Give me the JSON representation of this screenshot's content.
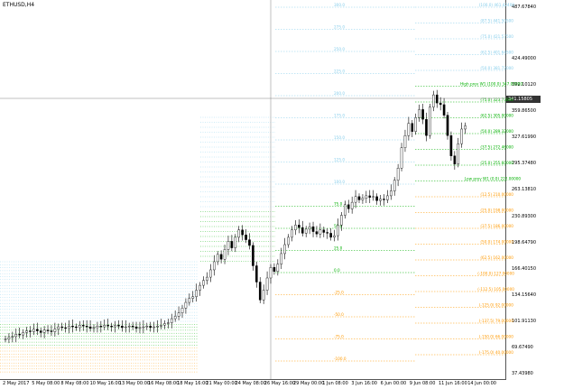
{
  "chart": {
    "symbol_title": "ETHUSD,H4",
    "current_price_label": "341.15805"
  },
  "price_axis": {
    "labels": [
      "487.67840",
      "424.49000",
      "392.10120",
      "359.86500",
      "327.61990",
      "295.37480",
      "263.13810",
      "230.89300",
      "198.64790",
      "166.40150",
      "134.15640",
      "101.91130",
      "69.67490",
      "37.43980"
    ]
  },
  "time_axis": {
    "labels": [
      "2 May 2017",
      "5 May 08:00",
      "8 May 08:00",
      "10 May 16:00",
      "13 May 00:00",
      "16 May 08:00",
      "18 May 16:00",
      "21 May 00:00",
      "24 May 08:00",
      "26 May 16:00",
      "29 May 00:00",
      "1 Jun 08:00",
      "3 Jun 16:00",
      "6 Jun 00:00",
      "9 Jun 08:00",
      "11 Jun 16:00",
      "14 Jun 00:00"
    ]
  },
  "annotations": {
    "right_levels": [
      "(100.0) 461.42400",
      "(87.5) 441.50500",
      "(75.0) 421.57500",
      "(62.5) 401.64500",
      "(50.0) 381.72000",
      "High prev W1 (100.0) 347.00000",
      "(75.0) 323.73000",
      "(62.5) 305.00000",
      "(50.0) 289.32000",
      "(37.5) 272.46000",
      "(25.0) 255.60000",
      "Low prev W1 (0.0) 222.00000",
      "(12.5) 210.00000",
      "(25.0) 198.00000",
      "(37.5) 186.00000",
      "(50.0) 174.00000",
      "(62.5) 162.00000",
      "(-100.0) 127.00000",
      "(-112.5) 105.00000",
      "(-125.0) 92.00000",
      "(-137.5) 79.00000",
      "(-150.0) 66.00000",
      "(-175.0) 40.00000"
    ],
    "mid_levels": [
      "300.0",
      "275.0",
      "250.0",
      "225.0",
      "200.0",
      "175.0",
      "150.0",
      "125.0",
      "100.0",
      "75.0",
      "50.0",
      "25.0",
      "0.0",
      "-25.0",
      "-50.0",
      "-75.0",
      "-100.0"
    ]
  },
  "colors": {
    "candle": "#000000",
    "line_blue": "#87ceeb",
    "line_green": "#00b000",
    "line_orange": "#ff9900",
    "crosshair": "#808080"
  },
  "price_series_usd": [
    [
      0,
      80
    ],
    [
      4,
      82
    ],
    [
      8,
      83
    ],
    [
      12,
      86
    ],
    [
      16,
      85
    ],
    [
      20,
      88
    ],
    [
      24,
      90
    ],
    [
      28,
      89
    ],
    [
      32,
      92
    ],
    [
      36,
      90
    ],
    [
      40,
      88
    ],
    [
      44,
      91
    ],
    [
      48,
      90
    ],
    [
      52,
      89
    ],
    [
      56,
      92
    ],
    [
      60,
      95
    ],
    [
      64,
      94
    ],
    [
      68,
      93
    ],
    [
      72,
      96
    ],
    [
      76,
      95
    ],
    [
      80,
      94
    ],
    [
      84,
      97
    ],
    [
      88,
      96
    ],
    [
      92,
      95
    ],
    [
      96,
      93
    ],
    [
      100,
      94
    ],
    [
      104,
      96
    ],
    [
      108,
      95
    ],
    [
      112,
      97
    ],
    [
      116,
      96
    ],
    [
      120,
      95
    ],
    [
      124,
      97
    ],
    [
      128,
      96
    ],
    [
      132,
      94
    ],
    [
      136,
      95
    ],
    [
      140,
      96
    ],
    [
      144,
      95
    ],
    [
      148,
      93
    ],
    [
      152,
      94
    ],
    [
      156,
      95
    ],
    [
      160,
      96
    ],
    [
      164,
      94
    ],
    [
      168,
      95
    ],
    [
      172,
      96
    ],
    [
      176,
      97
    ],
    [
      180,
      99
    ],
    [
      184,
      100
    ],
    [
      188,
      105
    ],
    [
      192,
      108
    ],
    [
      196,
      112
    ],
    [
      200,
      118
    ],
    [
      204,
      125
    ],
    [
      208,
      130
    ],
    [
      212,
      132
    ],
    [
      216,
      140
    ],
    [
      220,
      146
    ],
    [
      224,
      152
    ],
    [
      228,
      156
    ],
    [
      232,
      165
    ],
    [
      236,
      175
    ],
    [
      240,
      184
    ],
    [
      244,
      178
    ],
    [
      248,
      190
    ],
    [
      252,
      200
    ],
    [
      256,
      192
    ],
    [
      260,
      205
    ],
    [
      264,
      214
    ],
    [
      268,
      208
    ],
    [
      272,
      202
    ],
    [
      276,
      195
    ],
    [
      280,
      170
    ],
    [
      284,
      150
    ],
    [
      288,
      128
    ],
    [
      292,
      140
    ],
    [
      296,
      155
    ],
    [
      300,
      168
    ],
    [
      304,
      163
    ],
    [
      308,
      172
    ],
    [
      312,
      185
    ],
    [
      316,
      196
    ],
    [
      320,
      205
    ],
    [
      324,
      214
    ],
    [
      328,
      220
    ],
    [
      332,
      217
    ],
    [
      336,
      210
    ],
    [
      340,
      215
    ],
    [
      344,
      218
    ],
    [
      348,
      212
    ],
    [
      352,
      209
    ],
    [
      356,
      214
    ],
    [
      360,
      211
    ],
    [
      364,
      210
    ],
    [
      368,
      205
    ],
    [
      372,
      207
    ],
    [
      376,
      220
    ],
    [
      380,
      232
    ],
    [
      384,
      245
    ],
    [
      388,
      240
    ],
    [
      392,
      248
    ],
    [
      396,
      255
    ],
    [
      400,
      251
    ],
    [
      404,
      253
    ],
    [
      408,
      256
    ],
    [
      412,
      254
    ],
    [
      416,
      255
    ],
    [
      420,
      250
    ],
    [
      424,
      252
    ],
    [
      428,
      251
    ],
    [
      432,
      256
    ],
    [
      436,
      262
    ],
    [
      440,
      275
    ],
    [
      444,
      290
    ],
    [
      448,
      315
    ],
    [
      452,
      330
    ],
    [
      456,
      345
    ],
    [
      460,
      335
    ],
    [
      464,
      352
    ],
    [
      468,
      362
    ],
    [
      472,
      350
    ],
    [
      476,
      330
    ],
    [
      480,
      365
    ],
    [
      484,
      380
    ],
    [
      488,
      370
    ],
    [
      492,
      368
    ],
    [
      496,
      355
    ],
    [
      500,
      330
    ],
    [
      504,
      305
    ],
    [
      508,
      295
    ],
    [
      512,
      320
    ],
    [
      516,
      338
    ],
    [
      520,
      342
    ]
  ]
}
